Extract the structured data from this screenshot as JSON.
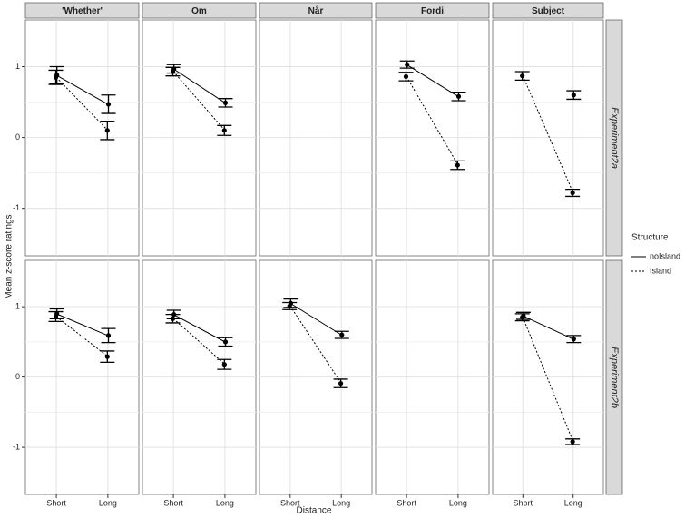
{
  "chart_data": {
    "type": "line",
    "x_label": "Distance",
    "y_label": "Mean z-score ratings",
    "categories": [
      "Short",
      "Long"
    ],
    "ylim": [
      -1.67,
      1.66
    ],
    "yticks": [
      -1,
      0,
      1
    ],
    "grid": true,
    "legend": {
      "title": "Structure",
      "position": "right"
    },
    "series": [
      {
        "name": "noIsland",
        "color": "#000000",
        "linestyle": "solid"
      },
      {
        "name": "Island",
        "color": "#000000",
        "linestyle": "dotted"
      }
    ],
    "columns": [
      "'Whether'",
      "Om",
      "Når",
      "Fordi",
      "Subject"
    ],
    "rows": [
      {
        "label": "Experiment2a",
        "panels": [
          {
            "series": [
              {
                "values": [
                  0.88,
                  0.47
                ],
                "errors": [
                  0.12,
                  0.13
                ]
              },
              {
                "values": [
                  0.85,
                  0.1
                ],
                "errors": [
                  0.1,
                  0.13
                ]
              }
            ]
          },
          {
            "series": [
              {
                "values": [
                  0.97,
                  0.49
                ],
                "errors": [
                  0.06,
                  0.06
                ]
              },
              {
                "values": [
                  0.93,
                  0.1
                ],
                "errors": [
                  0.06,
                  0.07
                ]
              }
            ]
          },
          {
            "series": [
              {
                "values": [
                  null,
                  null
                ],
                "errors": [
                  null,
                  null
                ]
              },
              {
                "values": [
                  null,
                  null
                ],
                "errors": [
                  null,
                  null
                ]
              }
            ]
          },
          {
            "series": [
              {
                "values": [
                  1.03,
                  0.58
                ],
                "errors": [
                  0.05,
                  0.06
                ]
              },
              {
                "values": [
                  0.86,
                  -0.39
                ],
                "errors": [
                  0.06,
                  0.06
                ]
              }
            ]
          },
          {
            "series": [
              {
                "values": [
                  null,
                  0.6
                ],
                "errors": [
                  null,
                  0.06
                ]
              },
              {
                "values": [
                  0.87,
                  -0.78
                ],
                "errors": [
                  0.06,
                  0.05
                ]
              }
            ]
          }
        ]
      },
      {
        "label": "Experiment2b",
        "panels": [
          {
            "series": [
              {
                "values": [
                  0.9,
                  0.59
                ],
                "errors": [
                  0.07,
                  0.1
                ]
              },
              {
                "values": [
                  0.86,
                  0.29
                ],
                "errors": [
                  0.07,
                  0.08
                ]
              }
            ]
          },
          {
            "series": [
              {
                "values": [
                  0.89,
                  0.5
                ],
                "errors": [
                  0.06,
                  0.06
                ]
              },
              {
                "values": [
                  0.83,
                  0.18
                ],
                "errors": [
                  0.06,
                  0.07
                ]
              }
            ]
          },
          {
            "series": [
              {
                "values": [
                  1.05,
                  0.6
                ],
                "errors": [
                  0.06,
                  0.05
                ]
              },
              {
                "values": [
                  1.01,
                  -0.09
                ],
                "errors": [
                  0.05,
                  0.06
                ]
              }
            ]
          },
          {
            "series": [
              {
                "values": [
                  null,
                  null
                ],
                "errors": [
                  null,
                  null
                ]
              },
              {
                "values": [
                  null,
                  null
                ],
                "errors": [
                  null,
                  null
                ]
              }
            ]
          },
          {
            "series": [
              {
                "values": [
                  0.87,
                  0.54
                ],
                "errors": [
                  0.05,
                  0.05
                ]
              },
              {
                "values": [
                  0.85,
                  -0.92
                ],
                "errors": [
                  0.05,
                  0.04
                ]
              }
            ]
          }
        ]
      }
    ]
  }
}
